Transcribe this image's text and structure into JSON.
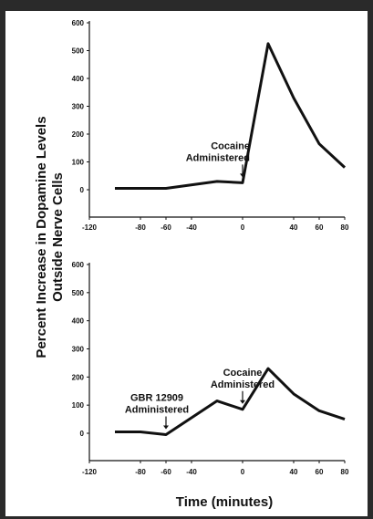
{
  "ylabel_line1": "Percent Increase in Dopamine Levels",
  "ylabel_line2": "Outside Nerve Cells",
  "xlabel": "Time (minutes)",
  "chart_data": [
    {
      "type": "line",
      "x": [
        -100,
        -60,
        -20,
        0,
        20,
        40,
        60,
        80
      ],
      "y": [
        5,
        5,
        30,
        25,
        525,
        330,
        165,
        80
      ],
      "xticks": [
        -120,
        -80,
        -60,
        -40,
        0,
        40,
        60,
        80
      ],
      "yticks": [
        0,
        100,
        200,
        300,
        400,
        500,
        600
      ],
      "xlim": [
        -120,
        80
      ],
      "ylim": [
        0,
        600
      ],
      "annotations": [
        {
          "lines": [
            "Cocaine",
            "Administered"
          ],
          "x": 0
        }
      ]
    },
    {
      "type": "line",
      "x": [
        -100,
        -80,
        -60,
        -40,
        -20,
        0,
        20,
        40,
        60,
        80
      ],
      "y": [
        5,
        5,
        -5,
        55,
        115,
        85,
        230,
        140,
        80,
        50
      ],
      "xticks": [
        -120,
        -80,
        -60,
        -40,
        0,
        40,
        60,
        80
      ],
      "yticks": [
        0,
        100,
        200,
        300,
        400,
        500,
        600
      ],
      "xlim": [
        -120,
        80
      ],
      "ylim": [
        0,
        600
      ],
      "annotations": [
        {
          "lines": [
            "GBR 12909",
            "Administered"
          ],
          "x": -60
        },
        {
          "lines": [
            "Cocaine",
            "Administered"
          ],
          "x": 0
        }
      ]
    }
  ]
}
